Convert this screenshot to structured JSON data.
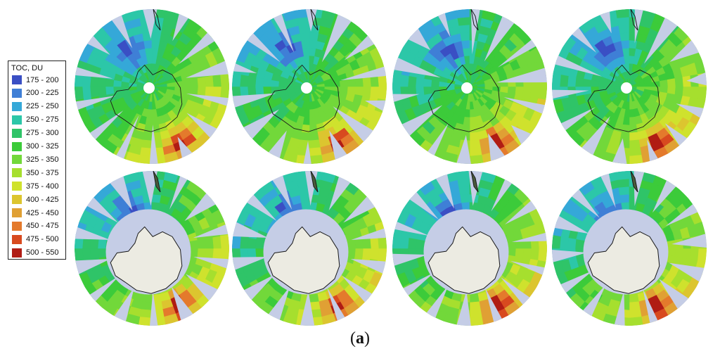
{
  "legend": {
    "title": "TOC, DU",
    "items": [
      {
        "label": "175 - 200",
        "color": "#3a4fc4"
      },
      {
        "label": "200 - 225",
        "color": "#3f7fd6"
      },
      {
        "label": "225 - 250",
        "color": "#35a8d8"
      },
      {
        "label": "250 - 275",
        "color": "#2cc7a8"
      },
      {
        "label": "275 - 300",
        "color": "#2fc468"
      },
      {
        "label": "300 - 325",
        "color": "#3ccb3a"
      },
      {
        "label": "325 - 350",
        "color": "#72d83a"
      },
      {
        "label": "350 - 375",
        "color": "#a6df2e"
      },
      {
        "label": "375 - 400",
        "color": "#cfe22d"
      },
      {
        "label": "400 - 425",
        "color": "#dcc52f"
      },
      {
        "label": "425 - 450",
        "color": "#e0a034"
      },
      {
        "label": "450 - 475",
        "color": "#e47a2c"
      },
      {
        "label": "475 - 500",
        "color": "#d84a1f"
      },
      {
        "label": "500 - 550",
        "color": "#b01c14"
      }
    ]
  },
  "colors": {
    "ocean_gap": "#c5cde6",
    "continent": "#ecebe2",
    "coastline": "#1a1a1a",
    "pole": "#ffffff"
  },
  "maps": {
    "rows": 2,
    "columns": 4,
    "top_row_continent_shown": false,
    "bottom_row_continent_shown": true
  },
  "caption": "(a)"
}
